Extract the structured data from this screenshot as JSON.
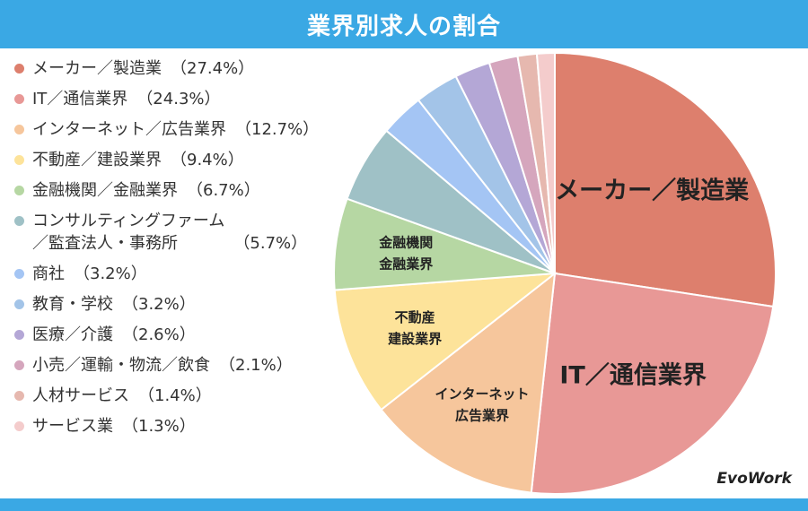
{
  "title": "業界別求人の割合",
  "brand": "EvoWork",
  "chart_data": {
    "type": "pie",
    "title": "業界別求人の割合",
    "unit": "%",
    "legend_position": "left",
    "start_angle_deg": 0,
    "direction": "clockwise",
    "slices": [
      {
        "legend": "メーカー／製造業",
        "value": 27.4,
        "pct_label": "（27.4%）",
        "color": "#dd7f6d",
        "slice_label": "メーカー／製造業",
        "label_style": "big"
      },
      {
        "legend": "IT／通信業界",
        "value": 24.3,
        "pct_label": "（24.3%）",
        "color": "#e89896",
        "slice_label": "IT／通信業界",
        "label_style": "big"
      },
      {
        "legend": "インターネット／広告業界",
        "value": 12.7,
        "pct_label": "（12.7%）",
        "color": "#f6c69c",
        "slice_label": "インターネット\n広告業界",
        "label_style": "small"
      },
      {
        "legend": "不動産／建設業界",
        "value": 9.4,
        "pct_label": "（9.4%）",
        "color": "#fde39a",
        "slice_label": "不動産\n建設業界",
        "label_style": "small"
      },
      {
        "legend": "金融機関／金融業界",
        "value": 6.7,
        "pct_label": "（6.7%）",
        "color": "#b6d7a3",
        "slice_label": "金融機関\n金融業界",
        "label_style": "small"
      },
      {
        "legend": "コンサルティングファーム\n／監査法人・事務所",
        "value": 5.7,
        "pct_label": "（5.7%）",
        "color": "#9fc1c6",
        "slice_label": "",
        "label_style": "none"
      },
      {
        "legend": "商社",
        "value": 3.2,
        "pct_label": "（3.2%）",
        "color": "#a4c5f4",
        "slice_label": "",
        "label_style": "none"
      },
      {
        "legend": "教育・学校",
        "value": 3.2,
        "pct_label": "（3.2%）",
        "color": "#a3c4e8",
        "slice_label": "",
        "label_style": "none"
      },
      {
        "legend": "医療／介護",
        "value": 2.6,
        "pct_label": "（2.6%）",
        "color": "#b4a7d6",
        "slice_label": "",
        "label_style": "none"
      },
      {
        "legend": "小売／運輸・物流／飲食",
        "value": 2.1,
        "pct_label": "（2.1%）",
        "color": "#d5a6bd",
        "slice_label": "",
        "label_style": "none"
      },
      {
        "legend": "人材サービス",
        "value": 1.4,
        "pct_label": "（1.4%）",
        "color": "#e6b8af",
        "slice_label": "",
        "label_style": "none"
      },
      {
        "legend": "サービス業",
        "value": 1.3,
        "pct_label": "（1.3%）",
        "color": "#f4cccc",
        "slice_label": "",
        "label_style": "none"
      }
    ]
  }
}
